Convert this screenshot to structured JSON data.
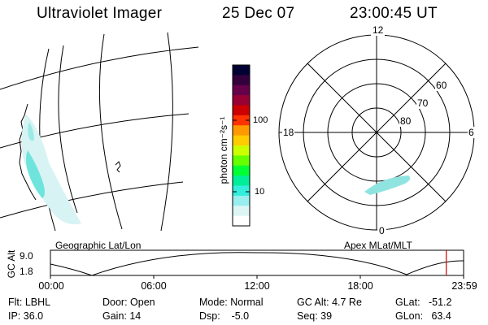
{
  "header": {
    "title": "Ultraviolet Imager",
    "date": "25 Dec 07",
    "time": "23:00:45 UT"
  },
  "colorbar": {
    "label": "photon cm⁻²s⁻¹",
    "ticks": [
      "100",
      "10"
    ],
    "colors": [
      "#000033",
      "#33003d",
      "#66004a",
      "#990033",
      "#cc0000",
      "#ff3300",
      "#ff9900",
      "#ffcc00",
      "#ccff00",
      "#66ff00",
      "#00ff33",
      "#00ee99",
      "#33eedd",
      "#99eeee",
      "#ddf5f5",
      "#ffffff"
    ]
  },
  "polar_plot": {
    "mlt_labels": {
      "top": "12",
      "left": "18",
      "right": "6",
      "bottom": "0"
    },
    "lat_labels": [
      "60",
      "70",
      "80"
    ]
  },
  "timeline": {
    "left_label": "Geographic Lat/Lon",
    "right_label": "Apex MLat/MLT",
    "y_axis_label": "GC Alt",
    "y_ticks": [
      "9.0",
      "1.8"
    ],
    "x_ticks": [
      "00:00",
      "06:00",
      "12:00",
      "18:00",
      "23:59"
    ],
    "current_time_marker_fraction": 0.958,
    "marker_color": "#cc0000"
  },
  "info": {
    "filter": "Flt: LBHL",
    "ip": "IP: 36.0",
    "door": "Door: Open",
    "gain": "Gain: 14",
    "mode": "Mode: Normal",
    "dsp": "Dsp:    -5.0",
    "gc_alt": "GC Alt: 4.7 Re",
    "seq": "Seq: 39",
    "glat": "GLat:   -51.2",
    "glon": "GLon:   63.4"
  }
}
